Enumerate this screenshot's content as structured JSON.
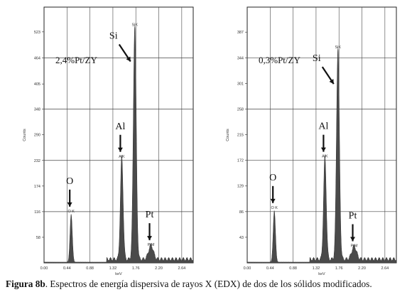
{
  "caption": {
    "label": "Figura 8b",
    "text": ". Espectros de energía dispersiva de rayos X (EDX) de dos de los sólidos modificados."
  },
  "chart_data": [
    {
      "type": "area",
      "sample_label": "2,4%Pt/ZY",
      "ylabel": "Counts",
      "xlabel": "keV",
      "xlim": [
        0.0,
        2.86
      ],
      "ylim": [
        0,
        579
      ],
      "x_ticks": [
        "0.00",
        "0.44",
        "0.88",
        "1.32",
        "1.76",
        "2.20",
        "2.64"
      ],
      "y_ticks": [
        "58",
        "116",
        "174",
        "232",
        "290",
        "348",
        "405",
        "464",
        "523"
      ],
      "grid": true,
      "peaks": [
        {
          "name": "O K",
          "x": 0.52,
          "y": 108,
          "label": "O",
          "annotation": "O K"
        },
        {
          "name": "AlK",
          "x": 1.49,
          "y": 232,
          "label": "Al",
          "annotation": "AlK"
        },
        {
          "name": "SiK",
          "x": 1.74,
          "y": 530,
          "label": "Si",
          "annotation": "SiK"
        },
        {
          "name": "PtM",
          "x": 2.05,
          "y": 32,
          "label": "Pt",
          "annotation": "PtM"
        }
      ]
    },
    {
      "type": "area",
      "sample_label": "0,3%Pt/ZY",
      "ylabel": "Counts",
      "xlabel": "keV",
      "xlim": [
        0.0,
        2.86
      ],
      "ylim": [
        0,
        429
      ],
      "x_ticks": [
        "0.00",
        "0.44",
        "0.88",
        "1.32",
        "1.76",
        "2.20",
        "2.64"
      ],
      "y_ticks": [
        "43",
        "86",
        "129",
        "172",
        "215",
        "258",
        "301",
        "344",
        "387"
      ],
      "grid": true,
      "peaks": [
        {
          "name": "O K",
          "x": 0.52,
          "y": 86,
          "label": "O",
          "annotation": "O K"
        },
        {
          "name": "AlK",
          "x": 1.49,
          "y": 172,
          "label": "Al",
          "annotation": "AlK"
        },
        {
          "name": "SiK",
          "x": 1.74,
          "y": 355,
          "label": "Si",
          "annotation": "SiK"
        },
        {
          "name": "PtM",
          "x": 2.05,
          "y": 22,
          "label": "Pt",
          "annotation": "PtM"
        }
      ]
    }
  ]
}
